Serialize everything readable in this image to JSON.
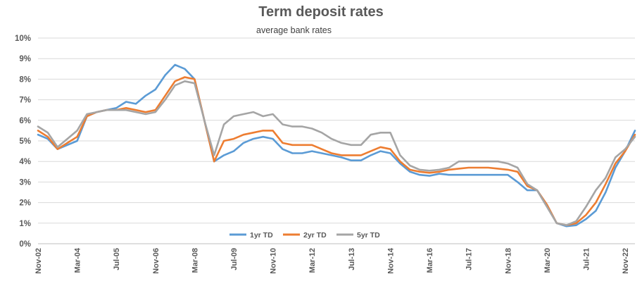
{
  "chart_data": {
    "type": "line",
    "title": "Term deposit rates",
    "subtitle": "average bank rates",
    "ylim": [
      0,
      10
    ],
    "yticks": [
      "0%",
      "1%",
      "2%",
      "3%",
      "4%",
      "5%",
      "6%",
      "7%",
      "8%",
      "9%",
      "10%"
    ],
    "xticks": [
      "Nov-02",
      "Mar-04",
      "Jul-05",
      "Nov-06",
      "Mar-08",
      "Jul-09",
      "Nov-10",
      "Mar-12",
      "Jul-13",
      "Nov-14",
      "Mar-16",
      "Jul-17",
      "Nov-18",
      "Mar-20",
      "Jul-21",
      "Nov-22"
    ],
    "x": [
      "Nov-02",
      "Mar-03",
      "Jul-03",
      "Nov-03",
      "Mar-04",
      "Jul-04",
      "Nov-04",
      "Mar-05",
      "Jul-05",
      "Nov-05",
      "Mar-06",
      "Jul-06",
      "Nov-06",
      "Mar-07",
      "Jul-07",
      "Nov-07",
      "Mar-08",
      "Jul-08",
      "Nov-08",
      "Mar-09",
      "Jul-09",
      "Nov-09",
      "Mar-10",
      "Jul-10",
      "Nov-10",
      "Mar-11",
      "Jul-11",
      "Nov-11",
      "Mar-12",
      "Jul-12",
      "Nov-12",
      "Mar-13",
      "Jul-13",
      "Nov-13",
      "Mar-14",
      "Jul-14",
      "Nov-14",
      "Mar-15",
      "Jul-15",
      "Nov-15",
      "Mar-16",
      "Jul-16",
      "Nov-16",
      "Mar-17",
      "Jul-17",
      "Nov-17",
      "Mar-18",
      "Jul-18",
      "Nov-18",
      "Mar-19",
      "Jul-19",
      "Nov-19",
      "Mar-20",
      "Jul-20",
      "Nov-20",
      "Mar-21",
      "Jul-21",
      "Nov-21",
      "Mar-22",
      "Jul-22",
      "Nov-22",
      "Mar-23"
    ],
    "series": [
      {
        "name": "1yr TD",
        "color": "#5B9BD5",
        "values": [
          5.3,
          5.1,
          4.6,
          4.8,
          5.0,
          6.2,
          6.4,
          6.5,
          6.6,
          6.9,
          6.8,
          7.2,
          7.5,
          8.2,
          8.7,
          8.5,
          8.0,
          6.0,
          4.0,
          4.3,
          4.5,
          4.9,
          5.1,
          5.2,
          5.1,
          4.6,
          4.4,
          4.4,
          4.5,
          4.4,
          4.3,
          4.2,
          4.05,
          4.05,
          4.3,
          4.5,
          4.4,
          3.9,
          3.5,
          3.35,
          3.3,
          3.4,
          3.35,
          3.35,
          3.35,
          3.35,
          3.35,
          3.35,
          3.35,
          3.0,
          2.6,
          2.6,
          1.9,
          1.0,
          0.85,
          0.9,
          1.2,
          1.6,
          2.5,
          3.7,
          4.5,
          5.5
        ]
      },
      {
        "name": "2yr TD",
        "color": "#ED7D31",
        "values": [
          5.5,
          5.2,
          4.6,
          4.9,
          5.2,
          6.2,
          6.4,
          6.5,
          6.5,
          6.6,
          6.5,
          6.4,
          6.5,
          7.2,
          7.9,
          8.1,
          8.0,
          6.0,
          4.0,
          5.0,
          5.1,
          5.3,
          5.4,
          5.5,
          5.5,
          4.9,
          4.8,
          4.8,
          4.8,
          4.6,
          4.4,
          4.3,
          4.3,
          4.3,
          4.5,
          4.7,
          4.6,
          4.0,
          3.6,
          3.5,
          3.45,
          3.5,
          3.6,
          3.65,
          3.7,
          3.7,
          3.7,
          3.65,
          3.6,
          3.5,
          2.8,
          2.6,
          1.9,
          1.0,
          0.9,
          1.0,
          1.4,
          2.0,
          2.9,
          3.9,
          4.5,
          5.3
        ]
      },
      {
        "name": "5yr TD",
        "color": "#A5A5A5",
        "values": [
          5.7,
          5.4,
          4.7,
          5.1,
          5.5,
          6.3,
          6.4,
          6.5,
          6.5,
          6.5,
          6.4,
          6.3,
          6.4,
          7.0,
          7.7,
          7.9,
          7.8,
          6.0,
          4.3,
          5.8,
          6.2,
          6.3,
          6.4,
          6.2,
          6.3,
          5.8,
          5.7,
          5.7,
          5.6,
          5.4,
          5.1,
          4.9,
          4.8,
          4.8,
          5.3,
          5.4,
          5.4,
          4.3,
          3.8,
          3.6,
          3.55,
          3.6,
          3.7,
          4.0,
          4.0,
          4.0,
          4.0,
          4.0,
          3.9,
          3.7,
          2.9,
          2.6,
          1.8,
          1.0,
          0.9,
          1.1,
          1.8,
          2.6,
          3.2,
          4.2,
          4.6,
          5.2
        ]
      }
    ],
    "legend_position": "bottom-center",
    "grid": true
  }
}
